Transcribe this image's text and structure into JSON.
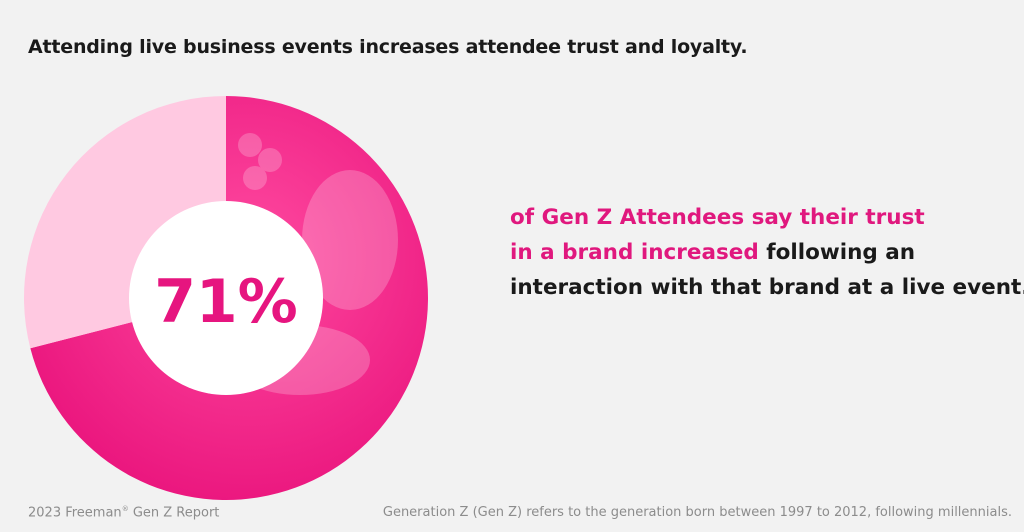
{
  "headline": "Attending live business events increases attendee trust and loyalty.",
  "chart_data": {
    "type": "pie",
    "style": "donut",
    "values": [
      71,
      29
    ],
    "center_label": "71%",
    "colors": {
      "highlight": "#f2197f",
      "remainder": "#ffc9e1",
      "center": "#ffffff",
      "label": "#e6157f"
    }
  },
  "stat": {
    "highlight_line1": "of Gen Z Attendees say their trust",
    "highlight_line2": "in a brand increased",
    "rest_line2": " following an",
    "line3": "interaction with that brand at a live event."
  },
  "footer": {
    "source_main": "2023 Freeman",
    "source_reg": "®",
    "source_tail": " Gen Z Report",
    "definition": "Generation Z (Gen Z) refers to the generation born between 1997 to 2012, following millennials."
  }
}
